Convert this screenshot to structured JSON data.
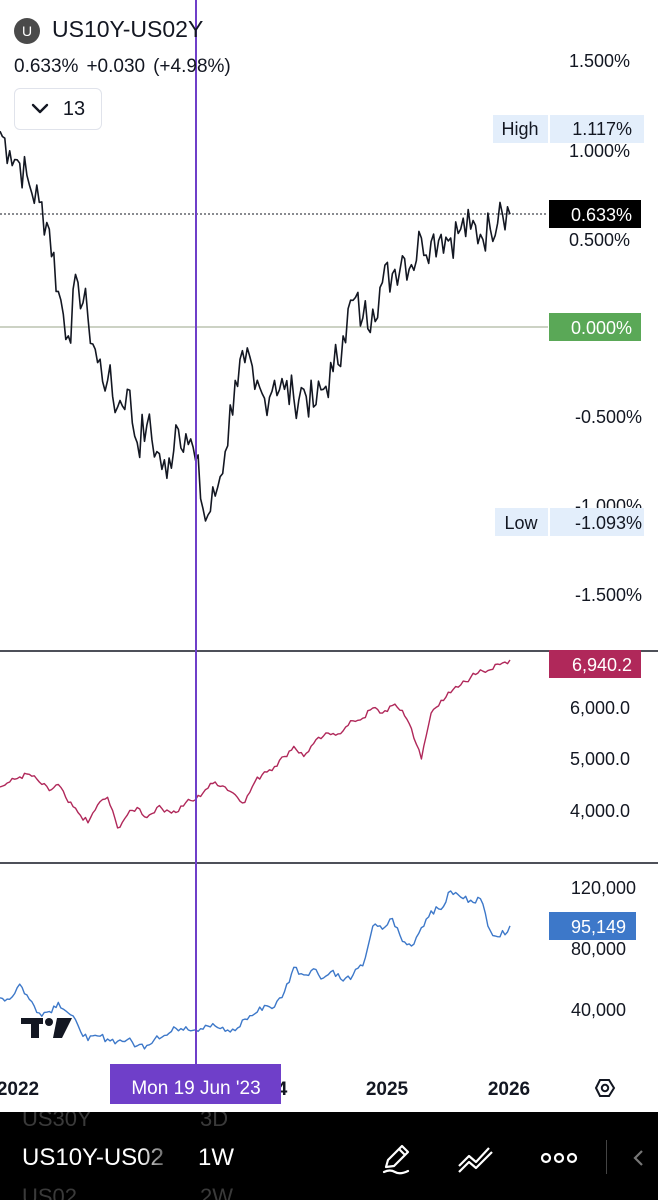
{
  "header": {
    "symbol_badge": "U",
    "symbol": "US10Y-US02Y",
    "last": "0.633%",
    "change": "+0.030",
    "change_pct": "(+4.98%)",
    "indicators_count": "13"
  },
  "main_pane": {
    "axis_labels": [
      "1.500%",
      "1.000%",
      "0.500%",
      "-0.500%",
      "-1.000%",
      "-1.500%"
    ],
    "high_label": "High",
    "high_value": "1.117%",
    "low_label": "Low",
    "low_value": "-1.093%",
    "last_value": "0.633%",
    "zero_value": "0.000%"
  },
  "pane2": {
    "axis_labels": [
      "6,000.0",
      "5,000.0",
      "4,000.0"
    ],
    "last_value": "6,940.2",
    "line_color": "#b0285a"
  },
  "pane3": {
    "axis_labels": [
      "120,000",
      "80,000",
      "40,000"
    ],
    "last_value": "95,149",
    "line_color": "#3d78c9"
  },
  "time_axis": {
    "labels": [
      "2022",
      "2025",
      "2026"
    ],
    "crosshair_label": "Mon 19 Jun '23",
    "partial_label": "4"
  },
  "crosshair_color": "#6f3fc9",
  "bottom_bar": {
    "ghost_top_symbol": "US30Y",
    "ghost_top_interval": "3D",
    "symbol": "US10Y-US02",
    "interval": "1W",
    "ghost_bottom_symbol": "US02",
    "ghost_bottom_interval": "2W",
    "icons": [
      "pencil-icon",
      "trend-lines-icon",
      "more-icon"
    ]
  },
  "chart_data": {
    "type": "line",
    "x_range": [
      "2021-09",
      "2026-01"
    ],
    "series": [
      {
        "name": "US10Y-US02Y",
        "unit": "%",
        "ylim": [
          -1.6,
          1.6
        ],
        "x": [
          "2021-09",
          "2021-10",
          "2021-11",
          "2021-12",
          "2022-01",
          "2022-02",
          "2022-03",
          "2022-04",
          "2022-05",
          "2022-06",
          "2022-07",
          "2022-08",
          "2022-09",
          "2022-10",
          "2022-11",
          "2022-12",
          "2023-01",
          "2023-02",
          "2023-03",
          "2023-04",
          "2023-05",
          "2023-06",
          "2023-07",
          "2023-08",
          "2023-09",
          "2023-10",
          "2023-11",
          "2023-12",
          "2024-01",
          "2024-02",
          "2024-03",
          "2024-04",
          "2024-05",
          "2024-06",
          "2024-07",
          "2024-08",
          "2024-09",
          "2024-10",
          "2024-11",
          "2024-12",
          "2025-01",
          "2025-02",
          "2025-03",
          "2025-04",
          "2025-05",
          "2025-06",
          "2025-07",
          "2025-08",
          "2025-09",
          "2025-10",
          "2025-11",
          "2025-12",
          "2026-01"
        ],
        "values": [
          1.1,
          0.99,
          0.92,
          0.8,
          0.7,
          0.55,
          0.2,
          -0.05,
          0.25,
          0.05,
          -0.2,
          -0.3,
          -0.45,
          -0.35,
          -0.65,
          -0.55,
          -0.7,
          -0.85,
          -0.55,
          -0.6,
          -0.75,
          -1.09,
          -0.95,
          -0.7,
          -0.3,
          -0.2,
          -0.35,
          -0.4,
          -0.3,
          -0.35,
          -0.4,
          -0.35,
          -0.45,
          -0.35,
          -0.25,
          -0.05,
          0.15,
          0.05,
          0.1,
          0.25,
          0.3,
          0.4,
          0.35,
          0.5,
          0.48,
          0.52,
          0.5,
          0.55,
          0.55,
          0.52,
          0.55,
          0.7,
          0.633
        ]
      },
      {
        "name": "",
        "ylim": [
          3500,
          7200
        ],
        "x": [
          "2021-09",
          "2021-10",
          "2021-11",
          "2021-12",
          "2022-01",
          "2022-02",
          "2022-03",
          "2022-04",
          "2022-05",
          "2022-06",
          "2022-07",
          "2022-08",
          "2022-09",
          "2022-10",
          "2022-11",
          "2022-12",
          "2023-01",
          "2023-02",
          "2023-03",
          "2023-04",
          "2023-05",
          "2023-06",
          "2023-07",
          "2023-08",
          "2023-09",
          "2023-10",
          "2023-11",
          "2023-12",
          "2024-01",
          "2024-02",
          "2024-03",
          "2024-04",
          "2024-05",
          "2024-06",
          "2024-07",
          "2024-08",
          "2024-09",
          "2024-10",
          "2024-11",
          "2024-12",
          "2025-01",
          "2025-02",
          "2025-03",
          "2025-04",
          "2025-05",
          "2025-06",
          "2025-07",
          "2025-08",
          "2025-09",
          "2025-10",
          "2025-11",
          "2025-12",
          "2026-01"
        ],
        "values": [
          4450,
          4550,
          4650,
          4700,
          4550,
          4380,
          4500,
          4150,
          3950,
          3750,
          4100,
          4250,
          3650,
          3900,
          4050,
          3850,
          4050,
          4000,
          3950,
          4150,
          4200,
          4400,
          4550,
          4450,
          4300,
          4150,
          4550,
          4750,
          4850,
          5050,
          5250,
          5050,
          5300,
          5450,
          5500,
          5550,
          5750,
          5800,
          6000,
          5900,
          6050,
          5950,
          5600,
          5000,
          5900,
          6150,
          6300,
          6450,
          6600,
          6750,
          6750,
          6850,
          6940.2
        ]
      },
      {
        "name": "",
        "ylim": [
          15000,
          130000
        ],
        "x": [
          "2021-09",
          "2021-10",
          "2021-11",
          "2021-12",
          "2022-01",
          "2022-02",
          "2022-03",
          "2022-04",
          "2022-05",
          "2022-06",
          "2022-07",
          "2022-08",
          "2022-09",
          "2022-10",
          "2022-11",
          "2022-12",
          "2023-01",
          "2023-02",
          "2023-03",
          "2023-04",
          "2023-05",
          "2023-06",
          "2023-07",
          "2023-08",
          "2023-09",
          "2023-10",
          "2023-11",
          "2023-12",
          "2024-01",
          "2024-02",
          "2024-03",
          "2024-04",
          "2024-05",
          "2024-06",
          "2024-07",
          "2024-08",
          "2024-09",
          "2024-10",
          "2024-11",
          "2024-12",
          "2025-01",
          "2025-02",
          "2025-03",
          "2025-04",
          "2025-05",
          "2025-06",
          "2025-07",
          "2025-08",
          "2025-09",
          "2025-10",
          "2025-11",
          "2025-12",
          "2026-01"
        ],
        "values": [
          48000,
          47000,
          57000,
          47000,
          38000,
          39000,
          45000,
          38000,
          30000,
          20000,
          23000,
          21000,
          19500,
          20500,
          16500,
          16800,
          23000,
          23500,
          28000,
          29000,
          27000,
          30000,
          29500,
          26000,
          26500,
          34000,
          37500,
          43000,
          42000,
          52000,
          68000,
          63000,
          67000,
          61000,
          66000,
          59000,
          63000,
          69000,
          95000,
          93000,
          100000,
          85000,
          82000,
          94000,
          105000,
          106000,
          118000,
          114000,
          112000,
          113000,
          92000,
          88000,
          95149
        ]
      }
    ],
    "axis_ticks_main": [
      "1.500%",
      "1.000%",
      "0.500%",
      "-0.500%",
      "-1.000%",
      "-1.500%"
    ],
    "axis_ticks_pane2": [
      "6,000.0",
      "5,000.0",
      "4,000.0"
    ],
    "axis_ticks_pane3": [
      "120,000",
      "80,000",
      "40,000"
    ],
    "x_ticks": [
      "2022",
      "2025",
      "2026"
    ],
    "grid": false
  }
}
